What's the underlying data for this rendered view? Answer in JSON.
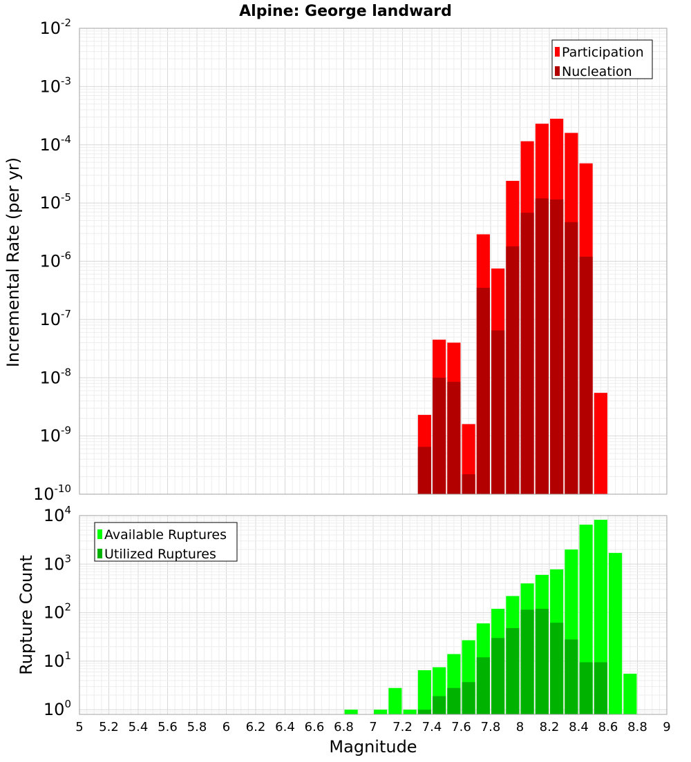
{
  "chart_data": [
    {
      "type": "bar",
      "panel": "top",
      "title": "Alpine: George landward",
      "ylabel": "Incremental Rate (per yr)",
      "xlabel": "",
      "xlim": [
        5,
        9
      ],
      "ylim": [
        1e-10,
        0.01
      ],
      "yscale": "log",
      "yticks": [
        {
          "base": "10",
          "exp": "-10",
          "value": 1e-10
        },
        {
          "base": "10",
          "exp": "-9",
          "value": 1e-09
        },
        {
          "base": "10",
          "exp": "-8",
          "value": 1e-08
        },
        {
          "base": "10",
          "exp": "-7",
          "value": 1e-07
        },
        {
          "base": "10",
          "exp": "-6",
          "value": 1e-06
        },
        {
          "base": "10",
          "exp": "-5",
          "value": 1e-05
        },
        {
          "base": "10",
          "exp": "-4",
          "value": 0.0001
        },
        {
          "base": "10",
          "exp": "-3",
          "value": 0.001
        },
        {
          "base": "10",
          "exp": "-2",
          "value": 0.01
        }
      ],
      "grid": true,
      "legend_position": "top-right",
      "x": [
        7.35,
        7.45,
        7.55,
        7.65,
        7.75,
        7.85,
        7.95,
        8.05,
        8.15,
        8.25,
        8.35,
        8.45,
        8.55
      ],
      "series": [
        {
          "name": "Participation",
          "color": "#ff0000",
          "values": [
            2.3e-09,
            4.5e-08,
            4e-08,
            1.6e-09,
            2.9e-06,
            7.5e-07,
            2.4e-05,
            0.000115,
            0.00023,
            0.00028,
            0.00016,
            4.8e-05,
            5.5e-09
          ]
        },
        {
          "name": "Nucleation",
          "color": "#b20000",
          "values": [
            6.5e-10,
            1e-08,
            8.5e-09,
            2.2e-10,
            3.5e-07,
            6.5e-08,
            1.8e-06,
            6.8e-06,
            1.2e-05,
            1.15e-05,
            4.7e-06,
            1.2e-06,
            null
          ]
        }
      ]
    },
    {
      "type": "bar",
      "panel": "bottom",
      "title": "",
      "ylabel": "Rupture Count",
      "xlabel": "Magnitude",
      "xlim": [
        5,
        9
      ],
      "ylim": [
        0.8,
        10000
      ],
      "yscale": "log",
      "yticks": [
        {
          "base": "10",
          "exp": "0",
          "value": 1
        },
        {
          "base": "10",
          "exp": "1",
          "value": 10
        },
        {
          "base": "10",
          "exp": "2",
          "value": 100
        },
        {
          "base": "10",
          "exp": "3",
          "value": 1000
        },
        {
          "base": "10",
          "exp": "4",
          "value": 10000
        }
      ],
      "xticks": [
        "5",
        "5.2",
        "5.4",
        "5.6",
        "5.8",
        "6",
        "6.2",
        "6.4",
        "6.6",
        "6.8",
        "7",
        "7.2",
        "7.4",
        "7.6",
        "7.8",
        "8",
        "8.2",
        "8.4",
        "8.6",
        "8.8",
        "9"
      ],
      "grid": true,
      "legend_position": "top-left",
      "x": [
        6.85,
        7.05,
        7.15,
        7.25,
        7.35,
        7.45,
        7.55,
        7.65,
        7.75,
        7.85,
        7.95,
        8.05,
        8.15,
        8.25,
        8.35,
        8.45,
        8.55,
        8.65,
        8.75
      ],
      "series": [
        {
          "name": "Available Ruptures",
          "color": "#00ff00",
          "values": [
            1,
            1,
            2.8,
            1,
            6.5,
            7.5,
            14,
            27,
            60,
            120,
            220,
            400,
            600,
            780,
            2000,
            6500,
            8200,
            1700,
            5.5
          ]
        },
        {
          "name": "Utilized Ruptures",
          "color": "#00b200",
          "values": [
            null,
            null,
            null,
            null,
            1,
            1.9,
            2.8,
            3.7,
            12,
            30,
            48,
            115,
            120,
            62,
            28,
            9.5,
            9.5,
            null,
            null
          ]
        }
      ]
    }
  ]
}
